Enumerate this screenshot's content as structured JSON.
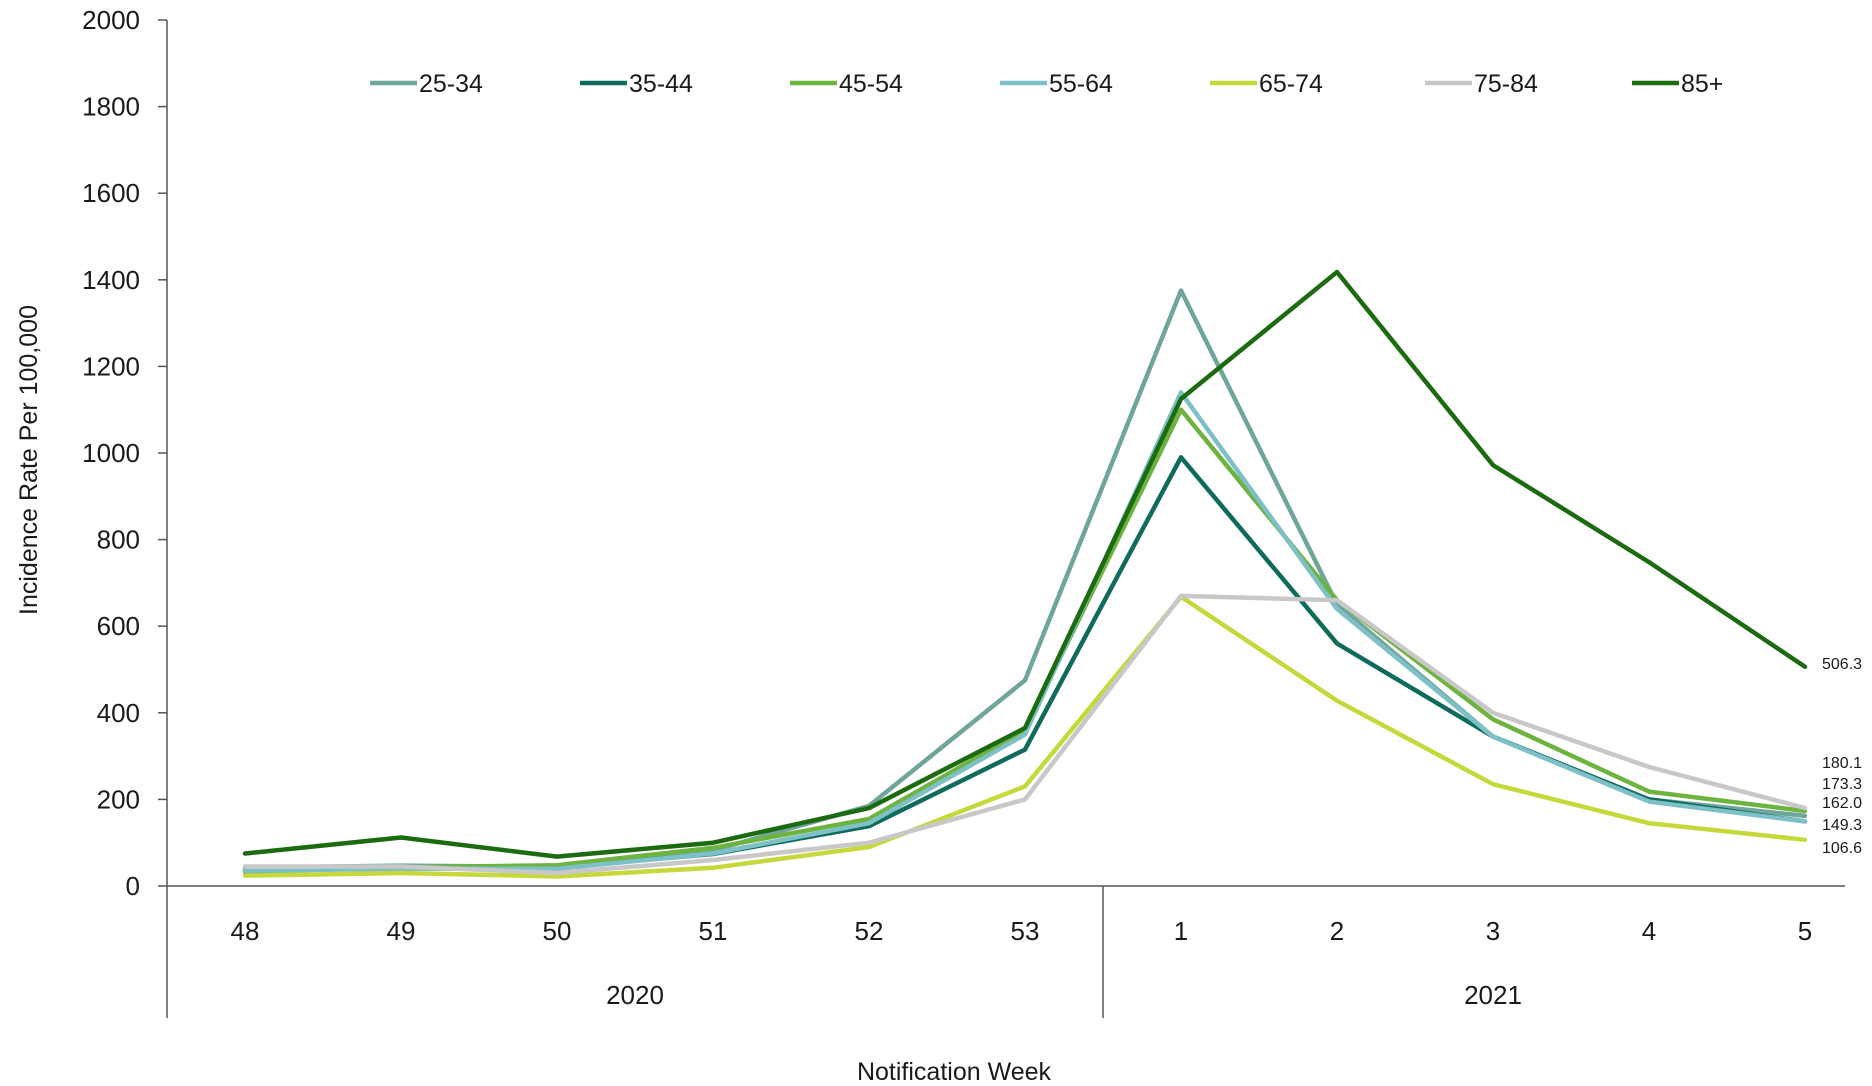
{
  "chart_data": {
    "type": "line",
    "title": "",
    "xlabel": "Notification Week",
    "ylabel": "Incidence Rate Per 100,000",
    "ylim": [
      0,
      2000
    ],
    "yticks": [
      0,
      200,
      400,
      600,
      800,
      1000,
      1200,
      1400,
      1600,
      1800,
      2000
    ],
    "grid": false,
    "legend_position": "top",
    "categories": [
      "48",
      "49",
      "50",
      "51",
      "52",
      "53",
      "1",
      "2",
      "3",
      "4",
      "5"
    ],
    "year_groups": [
      {
        "label": "2020",
        "count": 6
      },
      {
        "label": "2021",
        "count": 5
      }
    ],
    "series": [
      {
        "name": "25-34",
        "color": "#6fa59a",
        "values": [
          42,
          47,
          44,
          82,
          185,
          475,
          1375,
          650,
          345,
          200,
          162.0
        ]
      },
      {
        "name": "35-44",
        "color": "#0f6b5c",
        "values": [
          35,
          42,
          43,
          74,
          138,
          315,
          990,
          560,
          345,
          200,
          149.3
        ]
      },
      {
        "name": "45-54",
        "color": "#6db33f",
        "values": [
          33,
          43,
          48,
          88,
          155,
          360,
          1100,
          660,
          385,
          218,
          173.3
        ]
      },
      {
        "name": "55-64",
        "color": "#7dc0c8",
        "values": [
          35,
          40,
          40,
          75,
          145,
          350,
          1140,
          640,
          345,
          195,
          149.3
        ]
      },
      {
        "name": "65-74",
        "color": "#c5d93b",
        "values": [
          24,
          30,
          22,
          42,
          90,
          230,
          668,
          428,
          235,
          145,
          106.6
        ]
      },
      {
        "name": "75-84",
        "color": "#c8c8c8",
        "values": [
          45,
          45,
          30,
          60,
          100,
          200,
          670,
          660,
          400,
          275,
          180.1
        ]
      },
      {
        "name": "85+",
        "color": "#1c6b10",
        "values": [
          75,
          112,
          68,
          100,
          180,
          365,
          1125,
          1418,
          972,
          748,
          506.3
        ]
      }
    ],
    "end_labels": [
      "506.3",
      "180.1",
      "173.3",
      "162.0",
      "149.3",
      "106.6"
    ]
  }
}
